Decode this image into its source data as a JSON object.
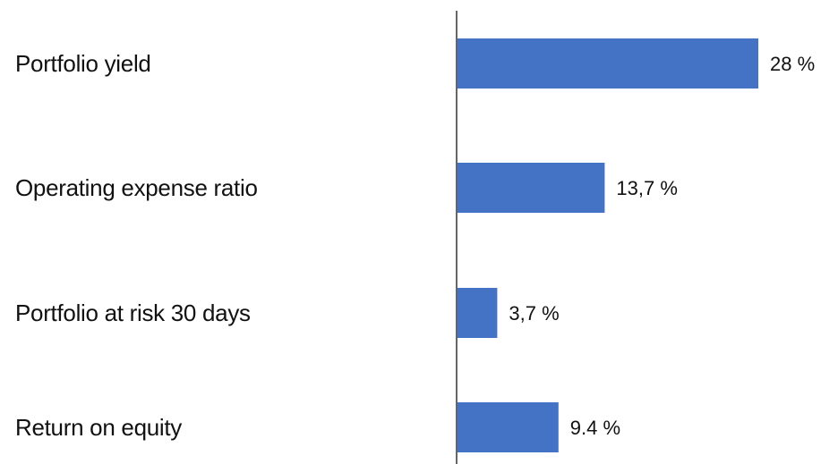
{
  "chart_data": {
    "type": "bar",
    "orientation": "horizontal",
    "categories": [
      "Portfolio yield",
      "Operating expense ratio",
      "Portfolio at risk 30 days",
      "Return on equity"
    ],
    "values": [
      28,
      13.7,
      3.7,
      9.4
    ],
    "value_labels": [
      "28 %",
      "13,7 %",
      "3,7 %",
      "9.4 %"
    ],
    "title": "",
    "xlabel": "",
    "ylabel": "",
    "xlim": [
      0,
      28
    ],
    "grid": false,
    "legend": "none",
    "bar_color": "#4472C4"
  }
}
